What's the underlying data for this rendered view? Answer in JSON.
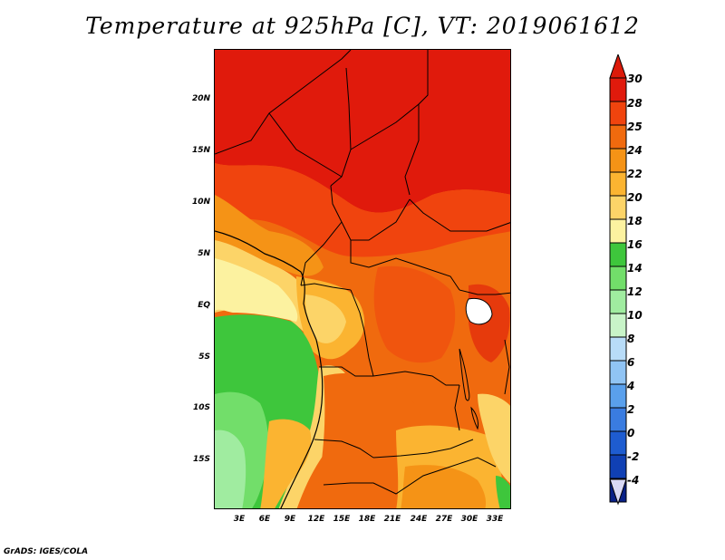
{
  "title": "Temperature at 925hPa [C], VT: 2019061612",
  "credit": "GrADS: IGES/COLA",
  "lat_ticks": [
    "20N",
    "15N",
    "10N",
    "5N",
    "EQ",
    "5S",
    "10S",
    "15S"
  ],
  "lon_ticks": [
    "3E",
    "6E",
    "9E",
    "12E",
    "15E",
    "18E",
    "21E",
    "24E",
    "27E",
    "30E",
    "33E"
  ],
  "colorbar": {
    "labels": [
      "30",
      "28",
      "25",
      "24",
      "22",
      "20",
      "18",
      "16",
      "14",
      "12",
      "10",
      "8",
      "6",
      "4",
      "2",
      "0",
      "-2",
      "-4"
    ],
    "colors": [
      "#e01a0c",
      "#f0440e",
      "#f06a0e",
      "#f59316",
      "#fbb431",
      "#fcd468",
      "#fcf2a0",
      "#3ec63c",
      "#72de6a",
      "#a0eca0",
      "#c8f4c8",
      "#b8dcf8",
      "#90c4f4",
      "#5aa0ec",
      "#3a7ce0",
      "#1e5cd0",
      "#1040b4",
      "#082088"
    ],
    "top_tip_color": "#dc1a0a",
    "bottom_tip_color": "#d8d8f4"
  }
}
